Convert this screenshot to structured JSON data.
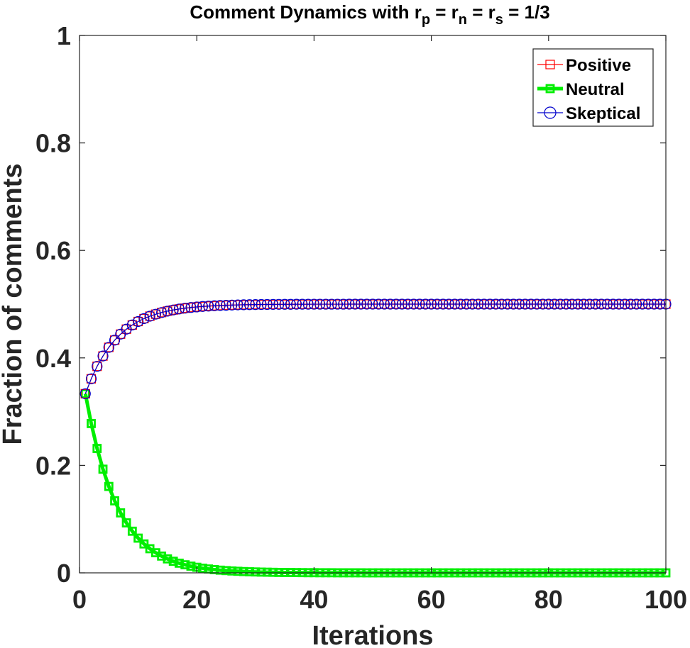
{
  "chart_data": {
    "type": "line",
    "title": {
      "prefix": "Comment Dynamics with r",
      "sub1": "p",
      "mid1": " = r",
      "sub2": "n",
      "mid2": " = r",
      "sub3": "s",
      "suffix": " = 1/3"
    },
    "xlabel": "Iterations",
    "ylabel": "Fraction of comments",
    "xlim": [
      0,
      100
    ],
    "ylim": [
      0,
      1
    ],
    "xticks": [
      0,
      20,
      40,
      60,
      80,
      100
    ],
    "xtick_labels": [
      "0",
      "20",
      "40",
      "60",
      "80",
      "100"
    ],
    "yticks": [
      0,
      0.2,
      0.4,
      0.6,
      0.8,
      1
    ],
    "ytick_labels": [
      "0",
      "0.2",
      "0.4",
      "0.6",
      "0.8",
      "1"
    ],
    "grid": false,
    "legend_position": "top-right",
    "x": [
      1,
      2,
      3,
      4,
      5,
      6,
      7,
      8,
      9,
      10,
      11,
      12,
      13,
      14,
      15,
      16,
      17,
      18,
      19,
      20,
      21,
      22,
      23,
      24,
      25,
      26,
      27,
      28,
      29,
      30,
      31,
      32,
      33,
      34,
      35,
      36,
      37,
      38,
      39,
      40,
      41,
      42,
      43,
      44,
      45,
      46,
      47,
      48,
      49,
      50,
      51,
      52,
      53,
      54,
      55,
      56,
      57,
      58,
      59,
      60,
      61,
      62,
      63,
      64,
      65,
      66,
      67,
      68,
      69,
      70,
      71,
      72,
      73,
      74,
      75,
      76,
      77,
      78,
      79,
      80,
      81,
      82,
      83,
      84,
      85,
      86,
      87,
      88,
      89,
      90,
      91,
      92,
      93,
      94,
      95,
      96,
      97,
      98,
      99,
      100
    ],
    "series": [
      {
        "name": "Positive",
        "color": "#ff0000",
        "marker": "square",
        "values": [
          0.3333,
          0.3611,
          0.3843,
          0.4035,
          0.4196,
          0.433,
          0.4442,
          0.4535,
          0.4612,
          0.4677,
          0.4731,
          0.4776,
          0.4813,
          0.4844,
          0.487,
          0.4892,
          0.491,
          0.4925,
          0.4938,
          0.4948,
          0.4957,
          0.4964,
          0.497,
          0.4975,
          0.4979,
          0.4983,
          0.4986,
          0.4988,
          0.499,
          0.4992,
          0.4993,
          0.4994,
          0.4995,
          0.4996,
          0.4997,
          0.4997,
          0.4998,
          0.4998,
          0.4998,
          0.4999,
          0.4999,
          0.4999,
          0.4999,
          0.4999,
          0.4999,
          0.5,
          0.5,
          0.5,
          0.5,
          0.5,
          0.5,
          0.5,
          0.5,
          0.5,
          0.5,
          0.5,
          0.5,
          0.5,
          0.5,
          0.5,
          0.5,
          0.5,
          0.5,
          0.5,
          0.5,
          0.5,
          0.5,
          0.5,
          0.5,
          0.5,
          0.5,
          0.5,
          0.5,
          0.5,
          0.5,
          0.5,
          0.5,
          0.5,
          0.5,
          0.5,
          0.5,
          0.5,
          0.5,
          0.5,
          0.5,
          0.5,
          0.5,
          0.5,
          0.5,
          0.5,
          0.5,
          0.5,
          0.5,
          0.5,
          0.5,
          0.5,
          0.5,
          0.5,
          0.5,
          0.5
        ]
      },
      {
        "name": "Neutral",
        "color": "#00ee00",
        "marker": "square",
        "values": [
          0.3333,
          0.2778,
          0.2315,
          0.1929,
          0.1608,
          0.134,
          0.1116,
          0.093,
          0.0775,
          0.0646,
          0.0538,
          0.0449,
          0.0374,
          0.0312,
          0.026,
          0.0216,
          0.018,
          0.015,
          0.0125,
          0.0104,
          0.0087,
          0.0072,
          0.006,
          0.005,
          0.0042,
          0.0035,
          0.0029,
          0.0024,
          0.002,
          0.0017,
          0.0014,
          0.0012,
          0.001,
          0.0008,
          0.0007,
          0.0006,
          0.0005,
          0.0004,
          0.0003,
          0.0003,
          0.0002,
          0.0002,
          0.0002,
          0.0001,
          0.0001,
          0.0001,
          0.0001,
          0.0001,
          0,
          0,
          0,
          0,
          0,
          0,
          0,
          0,
          0,
          0,
          0,
          0,
          0,
          0,
          0,
          0,
          0,
          0,
          0,
          0,
          0,
          0,
          0,
          0,
          0,
          0,
          0,
          0,
          0,
          0,
          0,
          0,
          0,
          0,
          0,
          0,
          0,
          0,
          0,
          0,
          0,
          0,
          0,
          0,
          0,
          0,
          0,
          0,
          0,
          0,
          0,
          0
        ]
      },
      {
        "name": "Skeptical",
        "color": "#0000cc",
        "marker": "circle",
        "values": [
          0.3333,
          0.3611,
          0.3843,
          0.4035,
          0.4196,
          0.433,
          0.4442,
          0.4535,
          0.4612,
          0.4677,
          0.4731,
          0.4776,
          0.4813,
          0.4844,
          0.487,
          0.4892,
          0.491,
          0.4925,
          0.4938,
          0.4948,
          0.4957,
          0.4964,
          0.497,
          0.4975,
          0.4979,
          0.4983,
          0.4986,
          0.4988,
          0.499,
          0.4992,
          0.4993,
          0.4994,
          0.4995,
          0.4996,
          0.4997,
          0.4997,
          0.4998,
          0.4998,
          0.4998,
          0.4999,
          0.4999,
          0.4999,
          0.4999,
          0.4999,
          0.4999,
          0.5,
          0.5,
          0.5,
          0.5,
          0.5,
          0.5,
          0.5,
          0.5,
          0.5,
          0.5,
          0.5,
          0.5,
          0.5,
          0.5,
          0.5,
          0.5,
          0.5,
          0.5,
          0.5,
          0.5,
          0.5,
          0.5,
          0.5,
          0.5,
          0.5,
          0.5,
          0.5,
          0.5,
          0.5,
          0.5,
          0.5,
          0.5,
          0.5,
          0.5,
          0.5,
          0.5,
          0.5,
          0.5,
          0.5,
          0.5,
          0.5,
          0.5,
          0.5,
          0.5,
          0.5,
          0.5,
          0.5,
          0.5,
          0.5,
          0.5,
          0.5,
          0.5,
          0.5,
          0.5,
          0.5
        ]
      }
    ]
  }
}
